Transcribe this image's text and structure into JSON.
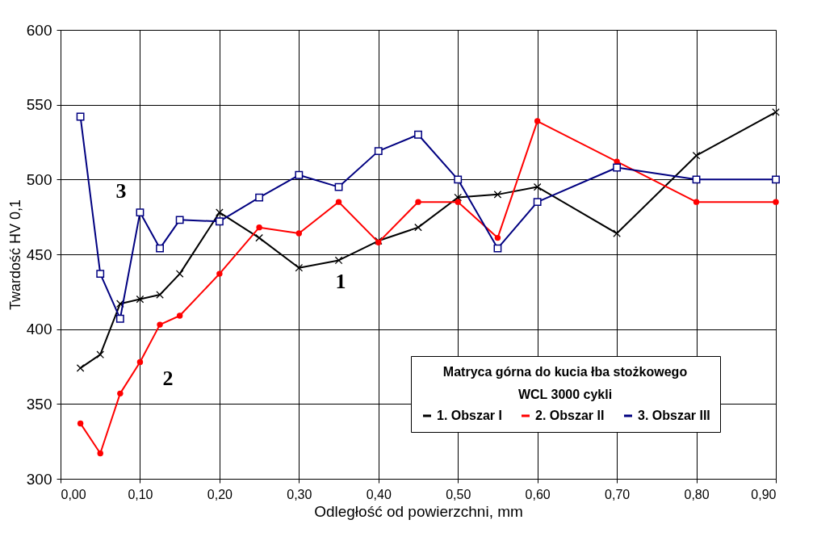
{
  "chart_data": {
    "type": "line",
    "xlabel": "Odległość od powierzchni, mm",
    "ylabel": "Twardość HV 0,1",
    "legend_title": "Matryca górna do kucia łba stożkowego\nWCL  3000 cykli",
    "x": [
      0.025,
      0.05,
      0.075,
      0.1,
      0.125,
      0.15,
      0.2,
      0.25,
      0.3,
      0.35,
      0.4,
      0.45,
      0.5,
      0.55,
      0.6,
      0.7,
      0.8,
      0.9
    ],
    "series": [
      {
        "name": "1. Obszar I",
        "color": "#000000",
        "marker": "cross",
        "values": [
          374,
          383,
          417,
          420,
          423,
          437,
          478,
          461,
          441,
          446,
          459,
          468,
          488,
          490,
          495,
          464,
          516,
          545
        ]
      },
      {
        "name": "2. Obszar II",
        "color": "#ff0000",
        "marker": "circle",
        "values": [
          337,
          317,
          357,
          378,
          403,
          409,
          437,
          468,
          464,
          485,
          458,
          485,
          485,
          461,
          539,
          512,
          485,
          485
        ]
      },
      {
        "name": "3. Obszar III",
        "color": "#000080",
        "marker": "square",
        "values": [
          542,
          437,
          407,
          478,
          454,
          473,
          472,
          488,
          503,
          495,
          519,
          530,
          500,
          454,
          485,
          508,
          500,
          500
        ]
      }
    ],
    "xlim": [
      0,
      0.9
    ],
    "xticks": [
      {
        "value": 0,
        "label": "0,00"
      },
      {
        "value": 0.1,
        "label": "0,10"
      },
      {
        "value": 0.2,
        "label": "0,20"
      },
      {
        "value": 0.3,
        "label": "0,30"
      },
      {
        "value": 0.4,
        "label": "0,40"
      },
      {
        "value": 0.5,
        "label": "0,50"
      },
      {
        "value": 0.6,
        "label": "0,60"
      },
      {
        "value": 0.7,
        "label": "0,70"
      },
      {
        "value": 0.8,
        "label": "0,80"
      },
      {
        "value": 0.9,
        "label": "0,90"
      }
    ],
    "ylim": [
      300,
      600
    ],
    "yticks": [
      300,
      350,
      400,
      450,
      500,
      550,
      600
    ],
    "grid": true,
    "legend": "bottom right",
    "line_style": "solid",
    "annotations": [
      "1",
      "2",
      "3"
    ]
  }
}
